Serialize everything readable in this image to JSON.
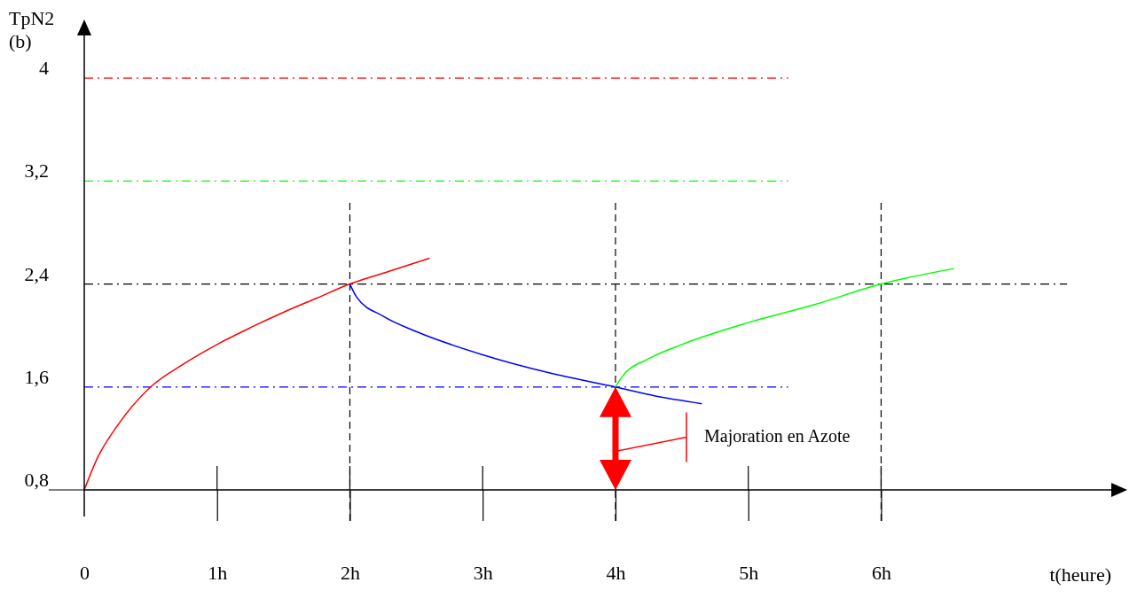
{
  "chart_data": {
    "type": "line",
    "xlabel": "t(heure)",
    "ylabel": "TpN2\n(b)",
    "xlim": [
      0,
      7.8
    ],
    "ylim": [
      0.8,
      4.4
    ],
    "xticks": [
      0,
      {
        "value": 1,
        "label": "1h"
      },
      {
        "value": 2,
        "label": "2h"
      },
      {
        "value": 3,
        "label": "3h"
      },
      {
        "value": 4,
        "label": "4h"
      },
      {
        "value": 5,
        "label": "5h"
      },
      {
        "value": 6,
        "label": "6h"
      }
    ],
    "yticks": [
      {
        "value": 0.8,
        "label": "0,8"
      },
      {
        "value": 1.6,
        "label": "1,6"
      },
      {
        "value": 2.4,
        "label": "2,4"
      },
      {
        "value": 3.2,
        "label": "3,2"
      },
      {
        "value": 4,
        "label": "4"
      }
    ],
    "grid": false,
    "marker": "none",
    "series": [
      {
        "color": "#ff0000",
        "x": [
          0,
          0.1,
          0.25,
          0.5,
          0.75,
          1,
          1.25,
          1.5,
          1.75,
          2,
          2.3,
          2.6
        ],
        "values": [
          0.8,
          1.05,
          1.3,
          1.6,
          1.78,
          1.93,
          2.06,
          2.18,
          2.29,
          2.4,
          2.5,
          2.6
        ]
      },
      {
        "color": "#0000ff",
        "x": [
          2,
          2.05,
          2.25,
          2.5,
          3,
          3.5,
          4,
          4.3,
          4.65
        ],
        "values": [
          2.4,
          2.3,
          2.15,
          2.03,
          1.85,
          1.71,
          1.6,
          1.53,
          1.47
        ]
      },
      {
        "color": "#00ff00",
        "x": [
          4,
          4.05,
          4.25,
          4.5,
          5,
          5.5,
          6,
          6.55
        ],
        "values": [
          1.6,
          1.68,
          1.82,
          1.93,
          2.1,
          2.24,
          2.4,
          2.52
        ]
      }
    ],
    "ref_lines": [
      {
        "axis": "y",
        "value": 4,
        "color": "#ff0000",
        "line_style": "dashed"
      },
      {
        "axis": "y",
        "value": 3.2,
        "color": "#00ff00",
        "line_style": "dashed"
      },
      {
        "axis": "y",
        "value": 2.4,
        "color": "#000000",
        "line_style": "dashed"
      },
      {
        "axis": "y",
        "value": 1.6,
        "color": "#0000ff",
        "line_style": "dashed"
      },
      {
        "axis": "x",
        "value": 2,
        "color": "#000000",
        "line_style": "dashed"
      },
      {
        "axis": "x",
        "value": 4,
        "color": "#000000",
        "line_style": "dashed"
      },
      {
        "axis": "x",
        "value": 6,
        "color": "#000000",
        "line_style": "dashed"
      }
    ],
    "annotations": [
      {
        "text": "Majoration en Azote",
        "x": 4,
        "y": 1.1
      }
    ]
  }
}
